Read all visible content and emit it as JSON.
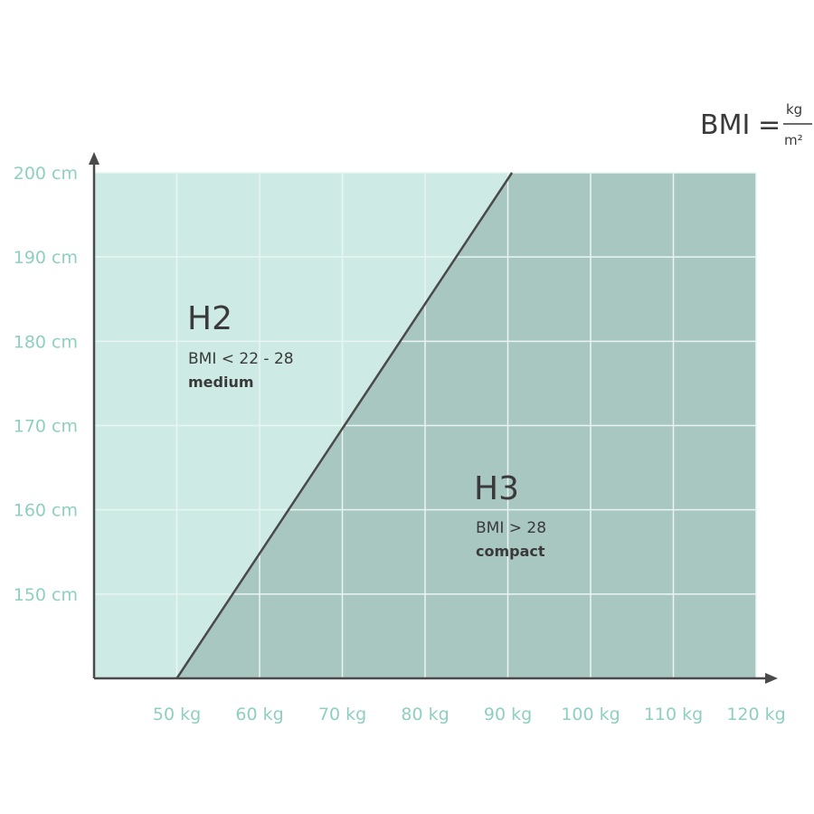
{
  "formula": {
    "lhs": "BMI",
    "eq": "=",
    "numerator": "kg",
    "denominator": "m²"
  },
  "chart_data": {
    "type": "area",
    "x_ticks": [
      {
        "value": 50,
        "label": "50 kg"
      },
      {
        "value": 60,
        "label": "60 kg"
      },
      {
        "value": 70,
        "label": "70 kg"
      },
      {
        "value": 80,
        "label": "80 kg"
      },
      {
        "value": 90,
        "label": "90 kg"
      },
      {
        "value": 100,
        "label": "100 kg"
      },
      {
        "value": 110,
        "label": "110 kg"
      },
      {
        "value": 120,
        "label": "120 kg"
      }
    ],
    "y_ticks": [
      {
        "value": 150,
        "label": "150 cm"
      },
      {
        "value": 160,
        "label": "160 cm"
      },
      {
        "value": 170,
        "label": "170 cm"
      },
      {
        "value": 180,
        "label": "180 cm"
      },
      {
        "value": 190,
        "label": "190 cm"
      },
      {
        "value": 200,
        "label": "200 cm"
      }
    ],
    "xlim": [
      40,
      120
    ],
    "ylim": [
      140,
      200
    ],
    "grid": true,
    "boundary": {
      "x": [
        50,
        90.5
      ],
      "y": [
        140,
        200
      ]
    },
    "regions": [
      {
        "id": "h2",
        "title": "H2",
        "bmi": "BMI < 22 - 28",
        "label": "medium",
        "color": "#cdebe4"
      },
      {
        "id": "h3",
        "title": "H3",
        "bmi": "BMI > 28",
        "label": "compact",
        "color": "#a8c7c1"
      }
    ],
    "axis_color": "#4a4a4a",
    "tick_color": "#8fcfc2",
    "grid_color": "#eaf5f2"
  }
}
